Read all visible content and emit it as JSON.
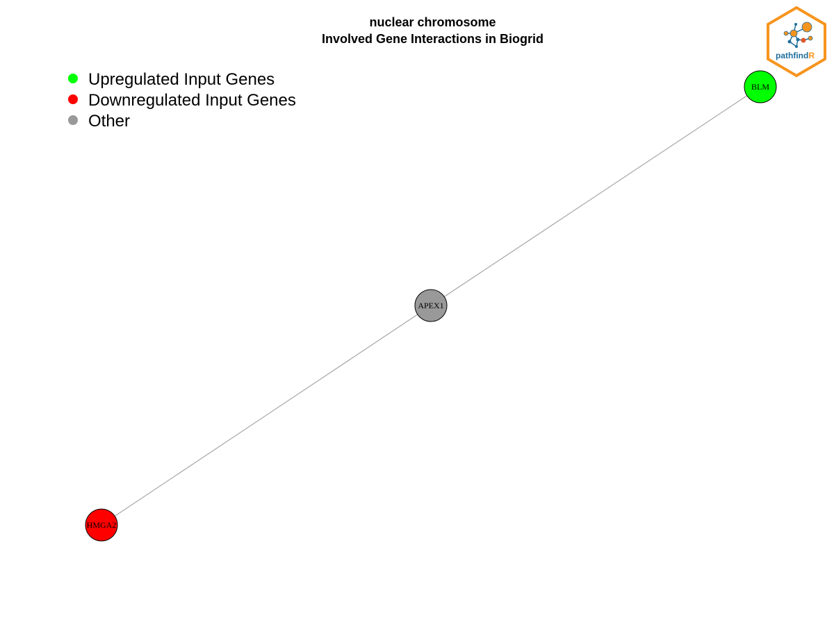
{
  "title": {
    "line1": "nuclear chromosome",
    "line2": "Involved Gene Interactions in Biogrid"
  },
  "legend": {
    "items": [
      {
        "label": "Upregulated Input Genes",
        "color": "#00ff00"
      },
      {
        "label": "Downregulated Input Genes",
        "color": "#ff0000"
      },
      {
        "label": "Other",
        "color": "#999999"
      }
    ]
  },
  "network": {
    "nodes": [
      {
        "id": "BLM",
        "label": "BLM",
        "color": "#00ff00",
        "group": "Upregulated Input Genes"
      },
      {
        "id": "APEX1",
        "label": "APEX1",
        "color": "#999999",
        "group": "Other"
      },
      {
        "id": "HMGA2",
        "label": "HMGA2",
        "color": "#ff0000",
        "group": "Downregulated Input Genes"
      }
    ],
    "edges": [
      {
        "from": "BLM",
        "to": "APEX1"
      },
      {
        "from": "APEX1",
        "to": "HMGA2"
      }
    ],
    "edge_color": "#a6a6a6"
  },
  "logo": {
    "text_main": "pathfind",
    "text_accent": "R",
    "border_color": "#f7941d",
    "text_color": "#1f6e9c",
    "accent_color": "#f7941d"
  }
}
